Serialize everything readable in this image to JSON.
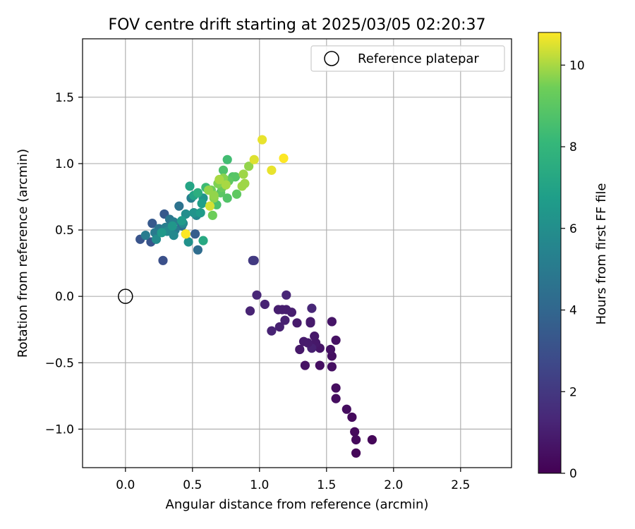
{
  "chart_data": {
    "type": "scatter",
    "title": "FOV centre drift starting at 2025/03/05 02:20:37",
    "xlabel": "Angular distance from reference (arcmin)",
    "ylabel": "Rotation from reference (arcmin)",
    "xlim": [
      -0.32,
      2.88
    ],
    "ylim": [
      -1.29,
      1.94
    ],
    "xticks": [
      0.0,
      0.5,
      1.0,
      1.5,
      2.0,
      2.5
    ],
    "xtick_labels": [
      "0.0",
      "0.5",
      "1.0",
      "1.5",
      "2.0",
      "2.5"
    ],
    "yticks": [
      -1.0,
      -0.5,
      0.0,
      0.5,
      1.0,
      1.5
    ],
    "ytick_labels": [
      "−1.0",
      "−0.5",
      "0.0",
      "0.5",
      "1.0",
      "1.5"
    ],
    "grid": true,
    "colormap": "viridis",
    "colorbar": {
      "label": "Hours from first FF file",
      "range": [
        0,
        10.8
      ],
      "ticks": [
        0,
        2,
        4,
        6,
        8,
        10
      ],
      "tick_labels": [
        "0",
        "2",
        "4",
        "6",
        "8",
        "10"
      ]
    },
    "legend": {
      "position": "upper right",
      "entries": [
        {
          "label": "Reference platepar",
          "marker": "open-circle"
        }
      ]
    },
    "reference_point": {
      "x": 0.0,
      "y": 0.0
    },
    "series": [
      {
        "points": [
          [
            1.72,
            -1.18,
            0.2
          ],
          [
            1.72,
            -1.08,
            0.3
          ],
          [
            1.84,
            -1.08,
            0.2
          ],
          [
            1.71,
            -1.02,
            0.3
          ],
          [
            1.69,
            -0.91,
            0.3
          ],
          [
            1.65,
            -0.85,
            0.4
          ],
          [
            1.57,
            -0.77,
            0.4
          ],
          [
            1.57,
            -0.69,
            0.4
          ],
          [
            1.54,
            -0.53,
            0.5
          ],
          [
            1.54,
            -0.45,
            0.5
          ],
          [
            1.45,
            -0.52,
            0.5
          ],
          [
            1.34,
            -0.52,
            0.6
          ],
          [
            1.53,
            -0.4,
            0.6
          ],
          [
            1.57,
            -0.33,
            0.6
          ],
          [
            1.54,
            -0.19,
            0.7
          ],
          [
            1.45,
            -0.39,
            0.7
          ],
          [
            1.42,
            -0.35,
            0.8
          ],
          [
            1.39,
            -0.39,
            1.1
          ],
          [
            1.41,
            -0.3,
            0.8
          ],
          [
            1.3,
            -0.4,
            0.8
          ],
          [
            1.33,
            -0.34,
            0.9
          ],
          [
            1.36,
            -0.35,
            0.9
          ],
          [
            1.38,
            -0.2,
            0.9
          ],
          [
            1.38,
            -0.19,
            0.9
          ],
          [
            1.28,
            -0.2,
            0.9
          ],
          [
            1.24,
            -0.12,
            1.0
          ],
          [
            1.2,
            -0.1,
            1.0
          ],
          [
            1.17,
            -0.1,
            1.0
          ],
          [
            1.14,
            -0.1,
            1.0
          ],
          [
            1.15,
            -0.23,
            1.1
          ],
          [
            1.19,
            -0.18,
            1.1
          ],
          [
            1.09,
            -0.26,
            1.2
          ],
          [
            1.04,
            -0.06,
            1.2
          ],
          [
            0.93,
            -0.11,
            1.2
          ],
          [
            0.98,
            0.01,
            1.3
          ],
          [
            1.2,
            0.01,
            1.3
          ],
          [
            1.39,
            -0.09,
            1.3
          ],
          [
            0.96,
            0.27,
            2.0
          ],
          [
            0.95,
            0.27,
            2.1
          ],
          [
            0.28,
            0.27,
            3.0
          ],
          [
            0.11,
            0.43,
            3.2
          ],
          [
            0.19,
            0.41,
            3.2
          ],
          [
            0.2,
            0.55,
            3.4
          ],
          [
            0.29,
            0.62,
            3.4
          ],
          [
            0.52,
            0.47,
            3.6
          ],
          [
            0.54,
            0.35,
            4.3
          ],
          [
            0.42,
            0.53,
            4.4
          ],
          [
            0.4,
            0.68,
            4.6
          ],
          [
            0.25,
            0.51,
            4.7
          ],
          [
            0.33,
            0.58,
            4.8
          ],
          [
            0.37,
            0.5,
            5.0
          ],
          [
            0.22,
            0.48,
            5.0
          ],
          [
            0.15,
            0.46,
            5.1
          ],
          [
            0.3,
            0.52,
            5.2
          ],
          [
            0.36,
            0.56,
            5.2
          ],
          [
            0.45,
            0.47,
            5.3
          ],
          [
            0.49,
            0.74,
            5.3
          ],
          [
            0.53,
            0.61,
            5.6
          ],
          [
            0.43,
            0.55,
            5.7
          ],
          [
            0.36,
            0.46,
            5.7
          ],
          [
            0.31,
            0.49,
            5.8
          ],
          [
            0.23,
            0.43,
            5.9
          ],
          [
            0.45,
            0.62,
            6.0
          ],
          [
            0.47,
            0.41,
            6.1
          ],
          [
            0.51,
            0.63,
            6.2
          ],
          [
            0.58,
            0.74,
            6.3
          ],
          [
            0.35,
            0.53,
            6.4
          ],
          [
            0.27,
            0.48,
            6.5
          ],
          [
            0.42,
            0.57,
            6.6
          ],
          [
            0.56,
            0.63,
            6.6
          ],
          [
            0.57,
            0.7,
            6.8
          ],
          [
            0.51,
            0.76,
            7.0
          ],
          [
            0.48,
            0.83,
            7.1
          ],
          [
            0.58,
            0.42,
            7.3
          ],
          [
            0.54,
            0.78,
            7.6
          ],
          [
            0.6,
            0.82,
            8.3
          ],
          [
            0.76,
            1.03,
            8.4
          ],
          [
            0.68,
            0.69,
            8.6
          ],
          [
            0.73,
            0.95,
            8.7
          ],
          [
            0.76,
            0.74,
            8.8
          ],
          [
            0.8,
            0.9,
            8.8
          ],
          [
            0.82,
            0.9,
            8.9
          ],
          [
            0.71,
            0.78,
            9.0
          ],
          [
            0.77,
            0.87,
            9.1
          ],
          [
            0.74,
            0.88,
            9.2
          ],
          [
            0.83,
            0.77,
            9.1
          ],
          [
            0.72,
            0.82,
            9.3
          ],
          [
            0.65,
            0.61,
            9.4
          ],
          [
            0.64,
            0.8,
            9.4
          ],
          [
            0.69,
            0.85,
            9.6
          ],
          [
            0.66,
            0.74,
            9.7
          ],
          [
            0.62,
            0.8,
            9.8
          ],
          [
            0.66,
            0.76,
            9.8
          ],
          [
            0.73,
            0.89,
            9.7
          ],
          [
            0.87,
            0.83,
            9.9
          ],
          [
            0.89,
            0.85,
            9.9
          ],
          [
            0.92,
            0.98,
            9.8
          ],
          [
            0.88,
            0.92,
            9.9
          ],
          [
            0.7,
            0.88,
            10.0
          ],
          [
            0.75,
            0.84,
            10.0
          ],
          [
            0.96,
            1.03,
            10.5
          ],
          [
            1.02,
            1.18,
            10.6
          ],
          [
            1.09,
            0.95,
            10.6
          ],
          [
            1.18,
            1.04,
            10.8
          ],
          [
            0.63,
            0.68,
            10.4
          ],
          [
            0.45,
            0.47,
            10.8
          ]
        ]
      }
    ]
  }
}
